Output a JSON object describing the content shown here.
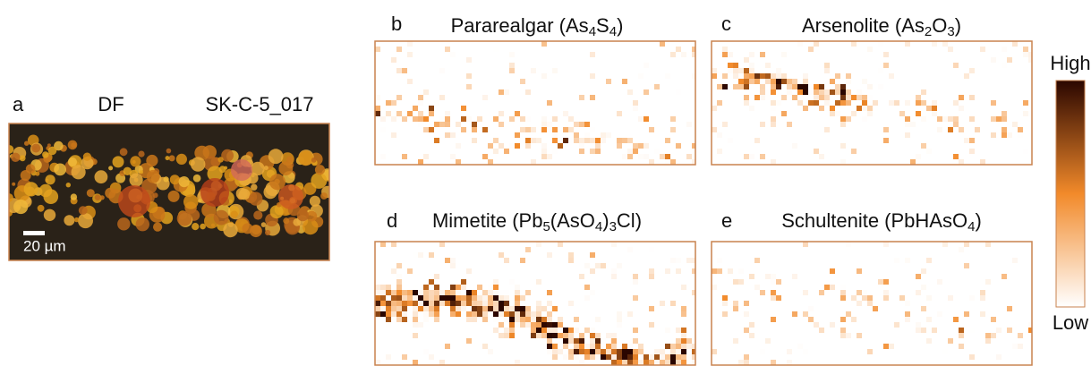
{
  "panels": [
    {
      "label": "a",
      "title": [
        {
          "text": "DF"
        }
      ],
      "sample": "SK-C-5_017",
      "scale_bar": "20 µm"
    },
    {
      "label": "b",
      "title": [
        {
          "text": "Pararealgar (As"
        },
        {
          "sub": "4"
        },
        {
          "text": "S"
        },
        {
          "sub": "4"
        },
        {
          "text": ")"
        }
      ]
    },
    {
      "label": "c",
      "title": [
        {
          "text": "Arsenolite (As"
        },
        {
          "sub": "2"
        },
        {
          "text": "O"
        },
        {
          "sub": "3"
        },
        {
          "text": ")"
        }
      ]
    },
    {
      "label": "d",
      "title": [
        {
          "text": "Mimetite (Pb"
        },
        {
          "sub": "5"
        },
        {
          "text": "(AsO"
        },
        {
          "sub": "4"
        },
        {
          "text": ")"
        },
        {
          "sub": "3"
        },
        {
          "text": "Cl)"
        }
      ]
    },
    {
      "label": "e",
      "title": [
        {
          "text": "Schultenite (PbHAsO"
        },
        {
          "sub": "4"
        },
        {
          "text": ")"
        }
      ]
    }
  ],
  "colorbar": {
    "high": "High",
    "low": "Low"
  }
}
